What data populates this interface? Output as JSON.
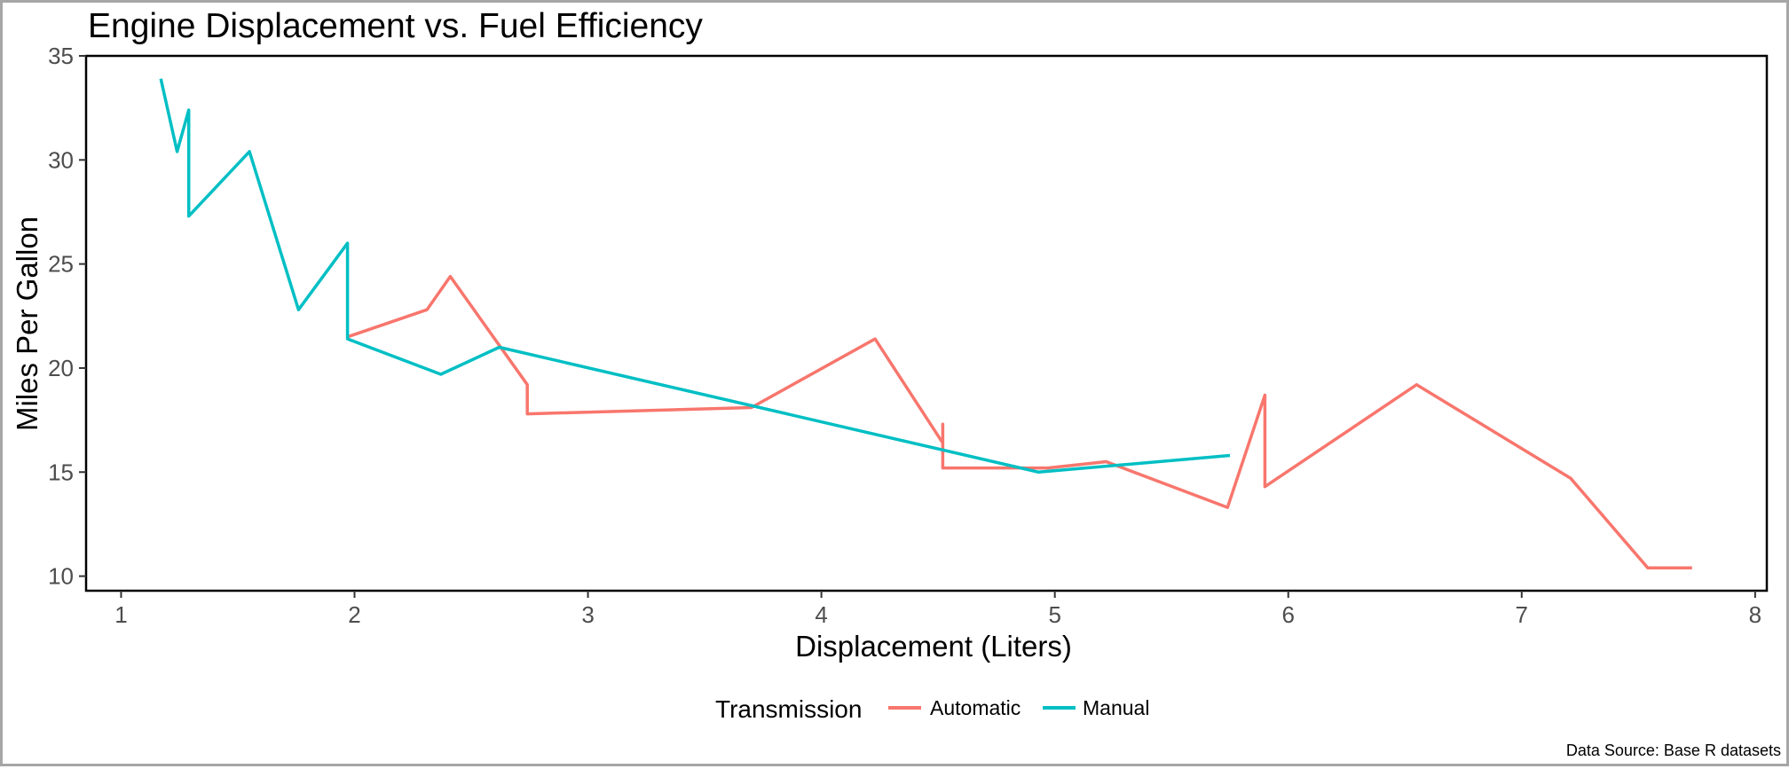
{
  "chart_data": {
    "type": "line",
    "title": "Engine Displacement vs. Fuel Efficiency",
    "xlabel": "Displacement (Liters)",
    "ylabel": "Miles Per Gallon",
    "caption": "Data Source: Base R datasets",
    "xlim": [
      0.85,
      8.05
    ],
    "ylim": [
      9.3,
      35
    ],
    "xticks": [
      1,
      2,
      3,
      4,
      5,
      6,
      7,
      8
    ],
    "yticks": [
      10,
      15,
      20,
      25,
      30,
      35
    ],
    "grid": false,
    "legend": {
      "title": "Transmission",
      "position": "bottom",
      "entries": [
        "Automatic",
        "Manual"
      ]
    },
    "series": [
      {
        "name": "Automatic",
        "color": "#F8766D",
        "points": [
          [
            1.97,
            21.5
          ],
          [
            2.31,
            22.8
          ],
          [
            2.41,
            24.4
          ],
          [
            2.74,
            19.2
          ],
          [
            2.74,
            17.8
          ],
          [
            3.7,
            18.1
          ],
          [
            4.23,
            21.4
          ],
          [
            4.52,
            16.4
          ],
          [
            4.52,
            17.3
          ],
          [
            4.52,
            15.2
          ],
          [
            4.97,
            15.2
          ],
          [
            5.22,
            15.5
          ],
          [
            5.74,
            13.3
          ],
          [
            5.9,
            18.7
          ],
          [
            5.9,
            14.3
          ],
          [
            6.55,
            19.2
          ],
          [
            7.21,
            14.7
          ],
          [
            7.54,
            10.4
          ],
          [
            7.73,
            10.4
          ]
        ]
      },
      {
        "name": "Manual",
        "color": "#00BFC4",
        "points": [
          [
            1.17,
            33.9
          ],
          [
            1.24,
            30.4
          ],
          [
            1.29,
            32.4
          ],
          [
            1.29,
            27.3
          ],
          [
            1.55,
            30.4
          ],
          [
            1.76,
            22.8
          ],
          [
            1.97,
            26.0
          ],
          [
            1.97,
            21.4
          ],
          [
            2.37,
            19.7
          ],
          [
            2.62,
            21.0
          ],
          [
            4.93,
            15.0
          ],
          [
            5.75,
            15.8
          ]
        ]
      }
    ]
  }
}
